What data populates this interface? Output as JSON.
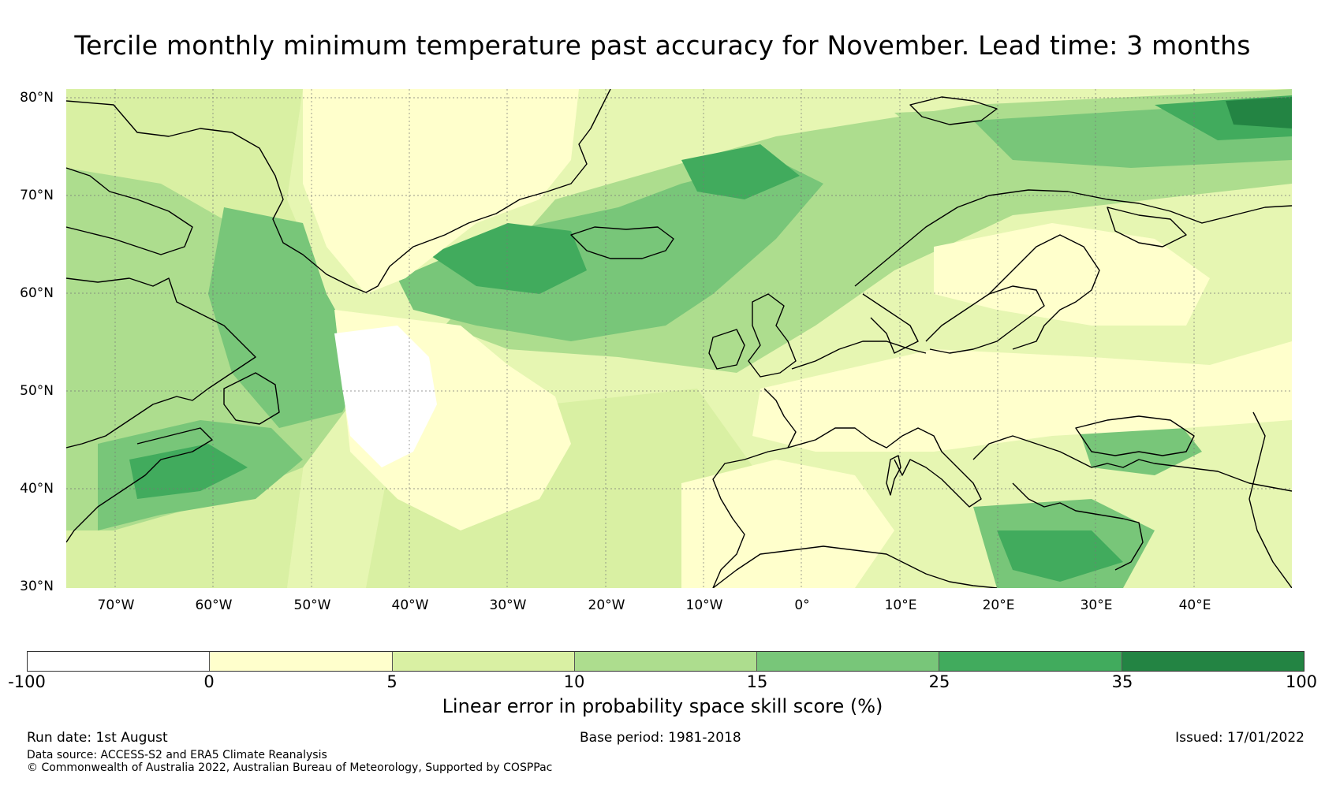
{
  "title": "Tercile monthly minimum temperature past accuracy for November. Lead time: 3 months",
  "map": {
    "latitude_labels": [
      "80°N",
      "70°N",
      "60°N",
      "50°N",
      "40°N",
      "30°N"
    ],
    "longitude_labels": [
      "70°W",
      "60°W",
      "50°W",
      "40°W",
      "30°W",
      "20°W",
      "10°W",
      "0°",
      "10°E",
      "20°E",
      "30°E",
      "40°E"
    ],
    "extent": {
      "lon_min": -75,
      "lon_max": 50,
      "lat_min": 30,
      "lat_max": 81
    },
    "ocean_base_color": "#f7fcc5",
    "coastline_color": "#000000",
    "gridline_color": "#777777"
  },
  "colorbar": {
    "tick_labels": [
      "-100",
      "0",
      "5",
      "10",
      "15",
      "25",
      "35",
      "100"
    ],
    "colors": [
      "#ffffff",
      "#ffffcc",
      "#d9f0a3",
      "#addd8e",
      "#78c679",
      "#41ab5d",
      "#238443"
    ],
    "label": "Linear error in probability space skill score (%)"
  },
  "footer": {
    "run_date": "Run date: 1st August",
    "base_period": "Base period: 1981-2018",
    "issued": "Issued: 17/01/2022",
    "data_source": "Data source: ACCESS-S2 and ERA5 Climate Reanalysis",
    "copyright": "© Commonwealth of Australia 2022, Australian Bureau of Meteorology, Supported by COSPPac"
  }
}
